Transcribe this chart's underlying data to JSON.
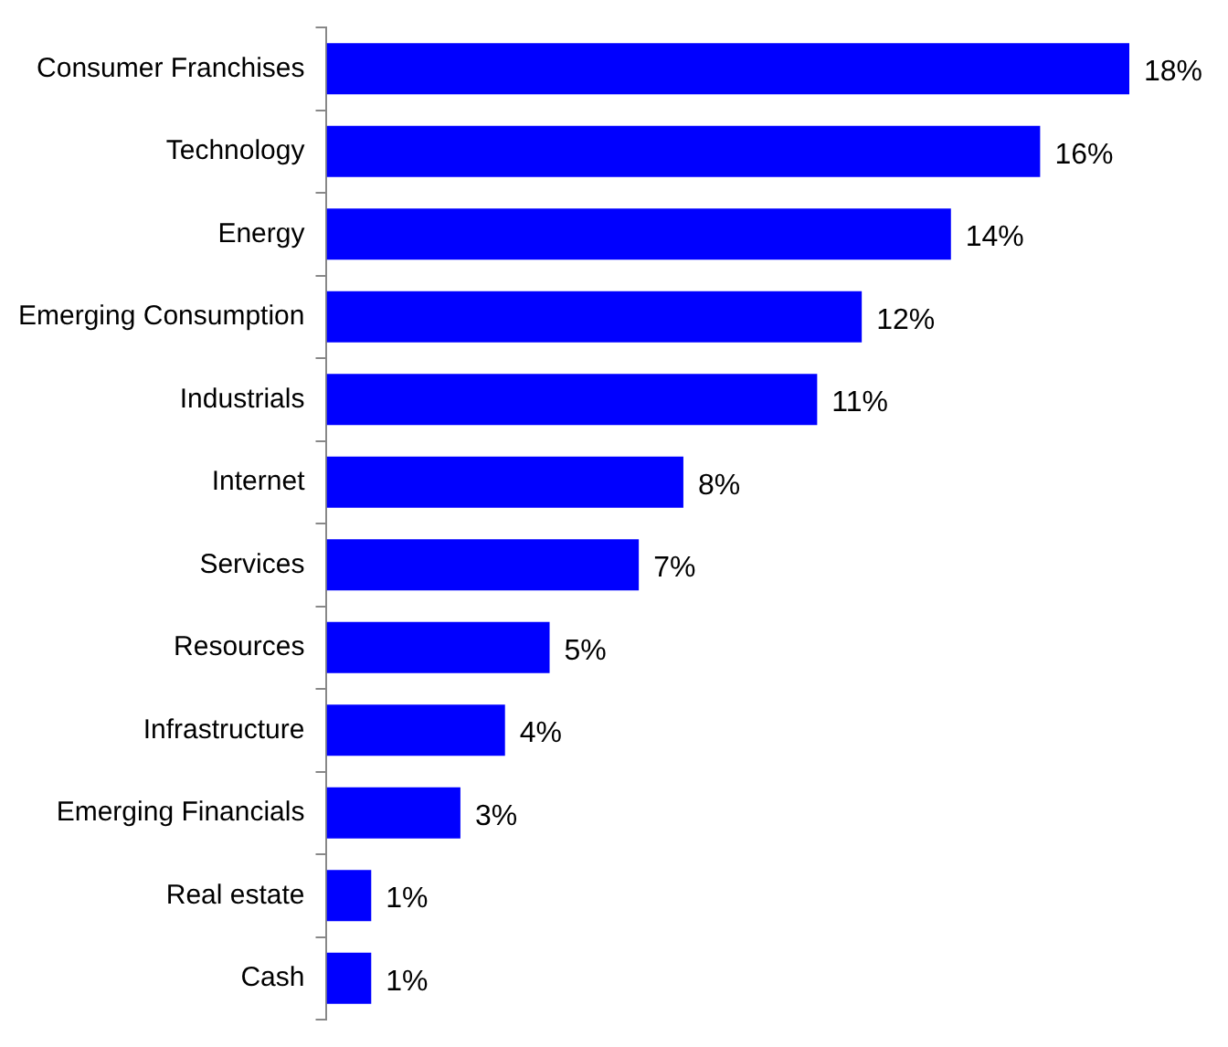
{
  "chart_data": {
    "type": "bar",
    "orientation": "horizontal",
    "categories": [
      "Consumer Franchises",
      "Technology",
      "Energy",
      "Emerging Consumption",
      "Industrials",
      "Internet",
      "Services",
      "Resources",
      "Infrastructure",
      "Emerging Financials",
      "Real estate",
      "Cash"
    ],
    "values": [
      18,
      16,
      14,
      12,
      11,
      8,
      7,
      5,
      4,
      3,
      1,
      1
    ],
    "value_labels": [
      "18%",
      "16%",
      "14%",
      "12%",
      "11%",
      "8%",
      "7%",
      "5%",
      "4%",
      "3%",
      "1%",
      "1%"
    ],
    "color": "#0000ff",
    "tick_labels": "y",
    "grid": false,
    "legend": false
  }
}
